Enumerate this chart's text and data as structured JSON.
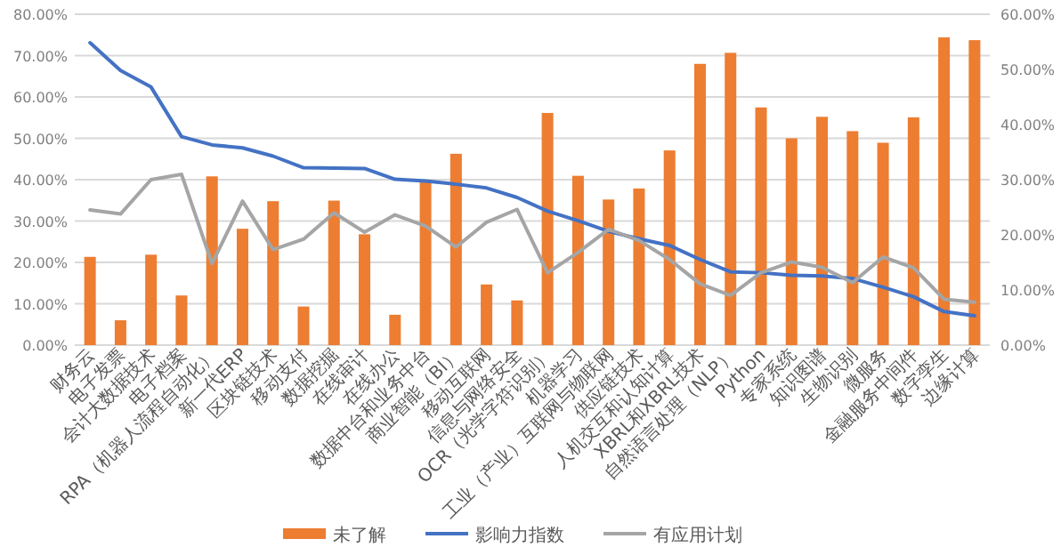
{
  "chart_data": {
    "type": "bar",
    "categories": [
      "财务云",
      "电子发票",
      "会计大数据技术",
      "电子档案",
      "RPA（机器人流程自动化）",
      "新一代ERP",
      "区块链技术",
      "移动支付",
      "数据挖掘",
      "在线审计",
      "在线办公",
      "数据中台和业务中台",
      "商业智能（BI）",
      "移动互联网",
      "信息与网络安全",
      "OCR（光学字符识别）",
      "机器学习",
      "工业（产业）互联网与物联网",
      "供应链技术",
      "人机交互和认知计算",
      "XBRL和XBRL技术",
      "自然语言处理（NLP）",
      "Python",
      "专家系统",
      "知识图谱",
      "生物识别",
      "微服务",
      "金融服务中间件",
      "数字孪生",
      "边缘计算"
    ],
    "series": [
      {
        "name": "未了解",
        "axis": "y2",
        "color": "#ed7d31",
        "values": [
          16.0,
          4.5,
          16.4,
          9.0,
          30.6,
          21.1,
          26.1,
          7.0,
          26.2,
          20.1,
          5.5,
          30.0,
          34.7,
          11.0,
          8.1,
          42.1,
          30.7,
          26.4,
          28.4,
          35.3,
          51.0,
          53.0,
          43.1,
          37.5,
          41.4,
          38.8,
          36.7,
          41.3,
          55.8,
          55.3
        ]
      },
      {
        "name": "影响力指数",
        "type": "line",
        "color": "#4472c4",
        "values": [
          73.1,
          66.4,
          62.4,
          50.4,
          48.4,
          47.7,
          45.7,
          42.9,
          42.8,
          42.7,
          40.1,
          39.7,
          38.9,
          38.0,
          35.7,
          32.4,
          30.1,
          27.5,
          25.7,
          24.1,
          20.7,
          17.7,
          17.5,
          16.9,
          16.7,
          16.1,
          14.0,
          11.7,
          8.1,
          7.1
        ]
      },
      {
        "name": "有应用计划",
        "type": "line",
        "color": "#a5a5a5",
        "values": [
          32.7,
          31.7,
          40.0,
          41.3,
          19.7,
          34.8,
          23.1,
          25.6,
          32.0,
          27.3,
          31.5,
          28.8,
          23.7,
          29.7,
          32.8,
          17.5,
          22.4,
          28.0,
          25.3,
          20.7,
          14.8,
          12.0,
          17.5,
          20.1,
          18.8,
          15.1,
          21.3,
          18.7,
          11.1,
          10.4
        ]
      }
    ],
    "ylim": [
      0,
      80
    ],
    "yticks": [
      {
        "value": 0,
        "label": "0.00%"
      },
      {
        "value": 10,
        "label": "10.00%"
      },
      {
        "value": 20,
        "label": "20.00%"
      },
      {
        "value": 30,
        "label": "30.00%"
      },
      {
        "value": 40,
        "label": "40.00%"
      },
      {
        "value": 50,
        "label": "50.00%"
      },
      {
        "value": 60,
        "label": "60.00%"
      },
      {
        "value": 70,
        "label": "70.00%"
      },
      {
        "value": 80,
        "label": "80.00%"
      }
    ],
    "y2lim": [
      0,
      60
    ],
    "y2ticks": [
      {
        "value": 0,
        "label": "0.00%"
      },
      {
        "value": 10,
        "label": "10.00%"
      },
      {
        "value": 20,
        "label": "20.00%"
      },
      {
        "value": 30,
        "label": "30.00%"
      },
      {
        "value": 40,
        "label": "40.00%"
      },
      {
        "value": 50,
        "label": "50.00%"
      },
      {
        "value": 60,
        "label": "60.00%"
      }
    ],
    "grid": "y",
    "legend": "bottom",
    "marker": "none",
    "line_style": "solid"
  }
}
